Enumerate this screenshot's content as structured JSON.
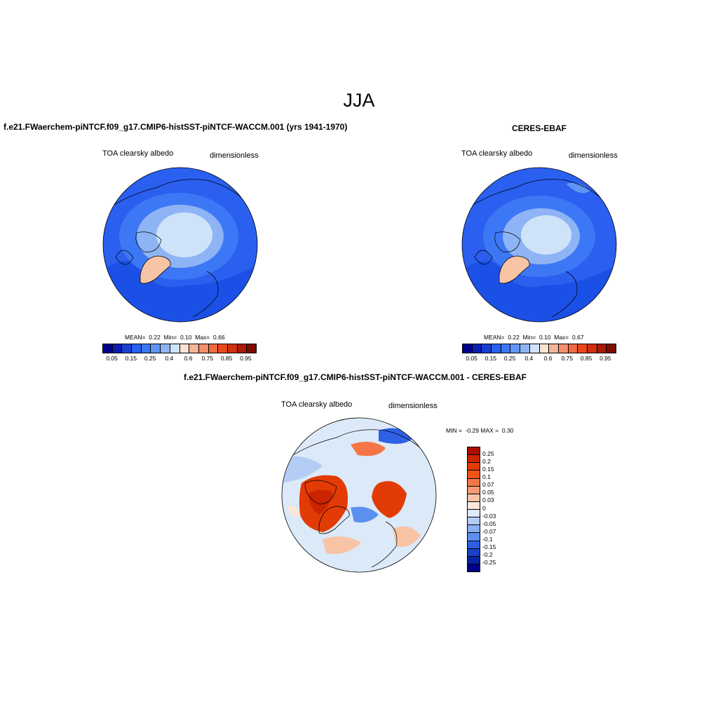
{
  "page": {
    "season": "JJA"
  },
  "panels": [
    {
      "title": "f.e21.FWaerchem-piNTCF.f09_g17.CMIP6-histSST-piNTCF-WACCM.001 (yrs 1941-1970)",
      "variable": "TOA clearsky albedo",
      "units": "dimensionless",
      "stats": {
        "mean_label": "MEAN=",
        "mean": "0.22",
        "min_label": "Min=",
        "min": "0.10",
        "max_label": "Max=",
        "max": "0.66"
      },
      "colorbar_labels": [
        "0.05",
        "0.15",
        "0.25",
        "0.4",
        "0.6",
        "0.75",
        "0.85",
        "0.95"
      ]
    },
    {
      "title": "CERES-EBAF",
      "variable": "TOA clearsky albedo",
      "units": "dimensionless",
      "stats": {
        "mean_label": "MEAN=",
        "mean": "0.22",
        "min_label": "Min=",
        "min": "0.10",
        "max_label": "Max=",
        "max": "0.67"
      },
      "colorbar_labels": [
        "0.05",
        "0.15",
        "0.25",
        "0.4",
        "0.6",
        "0.75",
        "0.85",
        "0.95"
      ]
    },
    {
      "title": "f.e21.FWaerchem-piNTCF.f09_g17.CMIP6-histSST-piNTCF-WACCM.001 - CERES-EBAF",
      "variable": "TOA clearsky albedo",
      "units": "dimensionless",
      "stats": {
        "min_label": "MIN =",
        "min": "-0.29",
        "max_label": "MAX =",
        "max": "0.30"
      },
      "colorbar_labels": [
        "0.25",
        "0.2",
        "0.15",
        "0.1",
        "0.07",
        "0.05",
        "0.03",
        "0",
        "-0.03",
        "-0.05",
        "-0.07",
        "-0.1",
        "-0.15",
        "-0.2",
        "-0.25"
      ]
    }
  ],
  "colors": {
    "abs_scale": [
      "#00008b",
      "#0a1fb0",
      "#1a3fd0",
      "#2a5ff0",
      "#3c78f5",
      "#5f95f5",
      "#8fb4f5",
      "#cfe3f8",
      "#fbe3d3",
      "#f5b49a",
      "#f2906c",
      "#ef6a3f",
      "#e8481a",
      "#cf3010",
      "#a81c08",
      "#7c0c00"
    ],
    "diff_scale": [
      "#a80f00",
      "#cc2400",
      "#e33b06",
      "#f25418",
      "#f47646",
      "#f59a72",
      "#f8c4a6",
      "#fbe7da",
      "#dce9f8",
      "#b3cdf5",
      "#8cb1f2",
      "#5b8ff0",
      "#2e60e6",
      "#1a3fc8",
      "#0a22a2",
      "#00008b"
    ],
    "land_boundary": "#000000"
  }
}
